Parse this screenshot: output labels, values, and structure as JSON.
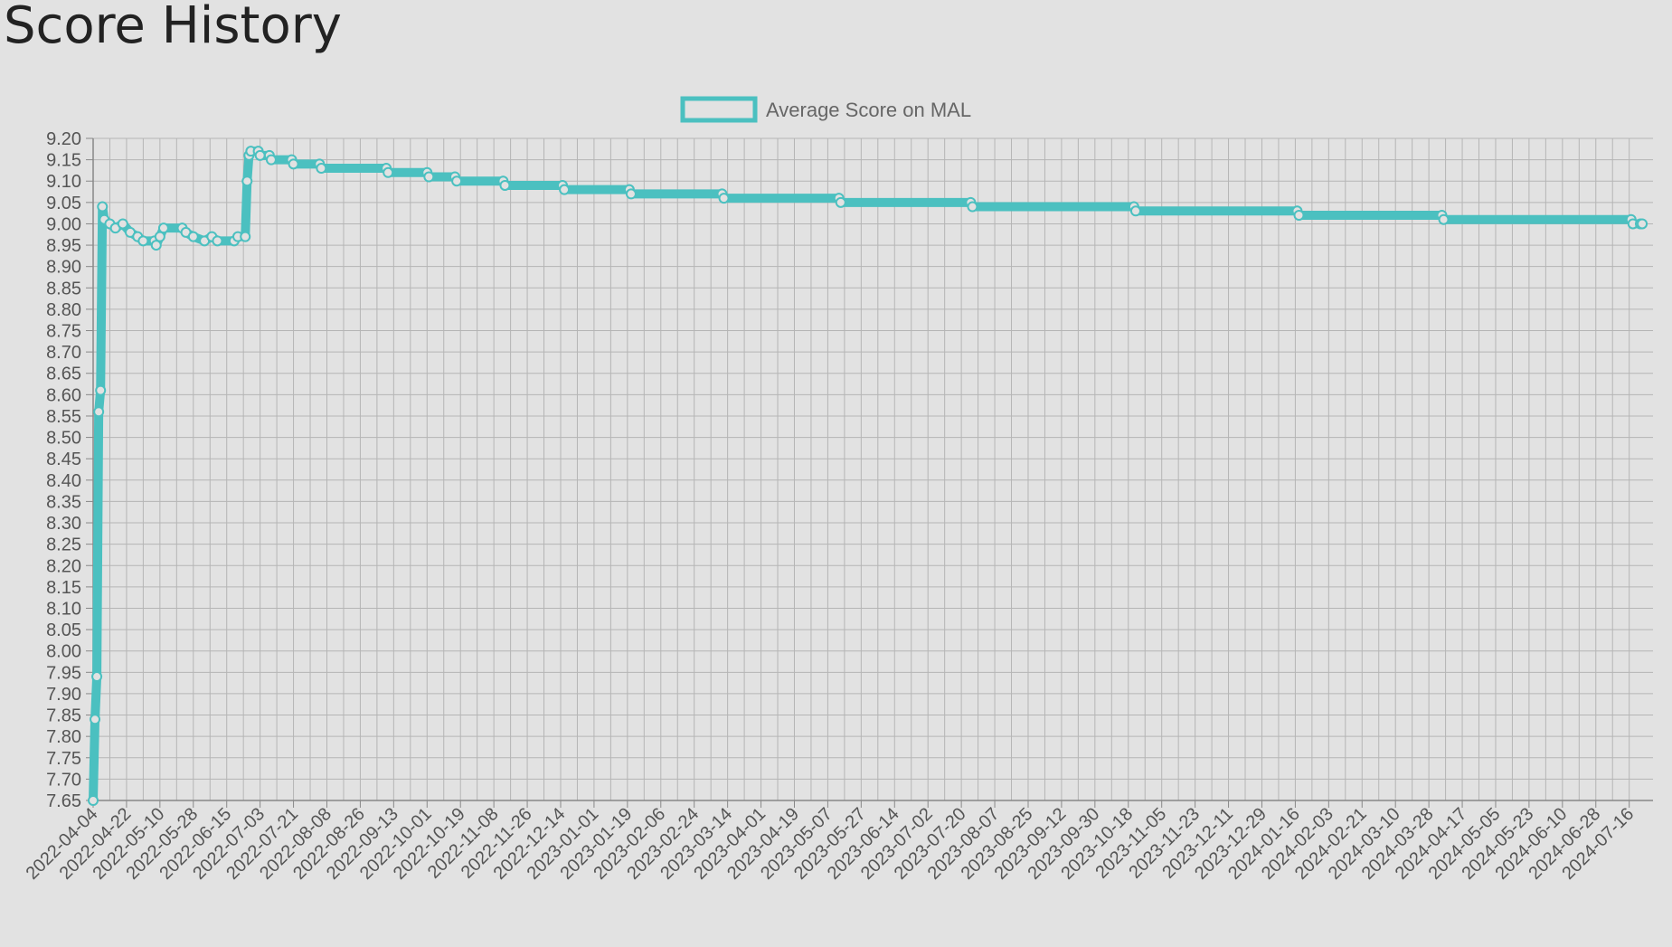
{
  "page": {
    "title": "Score History"
  },
  "colors": {
    "background": "#e2e2e2",
    "series": "#4bc0c0",
    "grid": "#b5b5b5",
    "axis": "#888888",
    "tick_text": "#555555"
  },
  "chart_data": {
    "type": "line",
    "title": "",
    "xlabel": "",
    "ylabel": "",
    "ylim": [
      7.65,
      9.2
    ],
    "ytick_step": 0.05,
    "xlim": [
      "2022-04-04",
      "2024-07-16"
    ],
    "x_tick_step_days": 18,
    "x_tick_labels": [
      "2022-04-04",
      "2022-04-22",
      "2022-05-10",
      "2022-05-28",
      "2022-06-15",
      "2022-07-03",
      "2022-07-21",
      "2022-08-08",
      "2022-08-26",
      "2022-09-13",
      "2022-10-01",
      "2022-10-19",
      "2022-11-08",
      "2022-11-26",
      "2022-12-14",
      "2023-01-01",
      "2023-01-19",
      "2023-02-06",
      "2023-02-24",
      "2023-03-14",
      "2023-04-01",
      "2023-04-19",
      "2023-05-07",
      "2023-05-27",
      "2023-06-14",
      "2023-07-02",
      "2023-07-20",
      "2023-08-07",
      "2023-08-25",
      "2023-09-12",
      "2023-09-30",
      "2023-10-18",
      "2023-11-05",
      "2023-11-23",
      "2023-12-11",
      "2023-12-29",
      "2024-01-16",
      "2024-02-03",
      "2024-02-21",
      "2024-03-10",
      "2024-03-28",
      "2024-04-17",
      "2024-05-05",
      "2024-05-23",
      "2024-06-10",
      "2024-06-28",
      "2024-07-16"
    ],
    "grid": true,
    "legend": {
      "position": "top-center"
    },
    "series": [
      {
        "name": "Average Score on MAL",
        "color": "#4bc0c0",
        "points": [
          [
            "2022-04-04",
            7.65
          ],
          [
            "2022-04-05",
            7.84
          ],
          [
            "2022-04-06",
            7.94
          ],
          [
            "2022-04-07",
            8.56
          ],
          [
            "2022-04-08",
            8.61
          ],
          [
            "2022-04-09",
            9.04
          ],
          [
            "2022-04-10",
            9.01
          ],
          [
            "2022-04-13",
            9.0
          ],
          [
            "2022-04-16",
            8.99
          ],
          [
            "2022-04-20",
            9.0
          ],
          [
            "2022-04-24",
            8.98
          ],
          [
            "2022-04-28",
            8.97
          ],
          [
            "2022-05-01",
            8.96
          ],
          [
            "2022-05-07",
            8.96
          ],
          [
            "2022-05-08",
            8.95
          ],
          [
            "2022-05-10",
            8.97
          ],
          [
            "2022-05-12",
            8.99
          ],
          [
            "2022-05-22",
            8.99
          ],
          [
            "2022-05-24",
            8.98
          ],
          [
            "2022-05-28",
            8.97
          ],
          [
            "2022-06-03",
            8.96
          ],
          [
            "2022-06-07",
            8.97
          ],
          [
            "2022-06-10",
            8.96
          ],
          [
            "2022-06-19",
            8.96
          ],
          [
            "2022-06-21",
            8.97
          ],
          [
            "2022-06-25",
            8.97
          ],
          [
            "2022-06-26",
            9.1
          ],
          [
            "2022-06-27",
            9.16
          ],
          [
            "2022-06-28",
            9.17
          ],
          [
            "2022-07-02",
            9.17
          ],
          [
            "2022-07-03",
            9.16
          ],
          [
            "2022-07-08",
            9.16
          ],
          [
            "2022-07-09",
            9.15
          ],
          [
            "2022-07-20",
            9.15
          ],
          [
            "2022-07-21",
            9.14
          ],
          [
            "2022-08-04",
            9.14
          ],
          [
            "2022-08-05",
            9.13
          ],
          [
            "2022-09-09",
            9.13
          ],
          [
            "2022-09-10",
            9.12
          ],
          [
            "2022-10-01",
            9.12
          ],
          [
            "2022-10-02",
            9.11
          ],
          [
            "2022-10-16",
            9.11
          ],
          [
            "2022-10-17",
            9.1
          ],
          [
            "2022-11-11",
            9.1
          ],
          [
            "2022-11-12",
            9.09
          ],
          [
            "2022-12-13",
            9.09
          ],
          [
            "2022-12-14",
            9.08
          ],
          [
            "2023-01-18",
            9.08
          ],
          [
            "2023-01-19",
            9.07
          ],
          [
            "2023-03-09",
            9.07
          ],
          [
            "2023-03-10",
            9.06
          ],
          [
            "2023-05-11",
            9.06
          ],
          [
            "2023-05-12",
            9.05
          ],
          [
            "2023-07-21",
            9.05
          ],
          [
            "2023-07-22",
            9.04
          ],
          [
            "2023-10-17",
            9.04
          ],
          [
            "2023-10-18",
            9.03
          ],
          [
            "2024-01-13",
            9.03
          ],
          [
            "2024-01-14",
            9.02
          ],
          [
            "2024-03-31",
            9.02
          ],
          [
            "2024-04-01",
            9.01
          ],
          [
            "2024-07-11",
            9.01
          ],
          [
            "2024-07-12",
            9.0
          ],
          [
            "2024-07-16",
            9.0
          ],
          [
            "2024-07-17",
            9.0
          ]
        ]
      }
    ]
  }
}
